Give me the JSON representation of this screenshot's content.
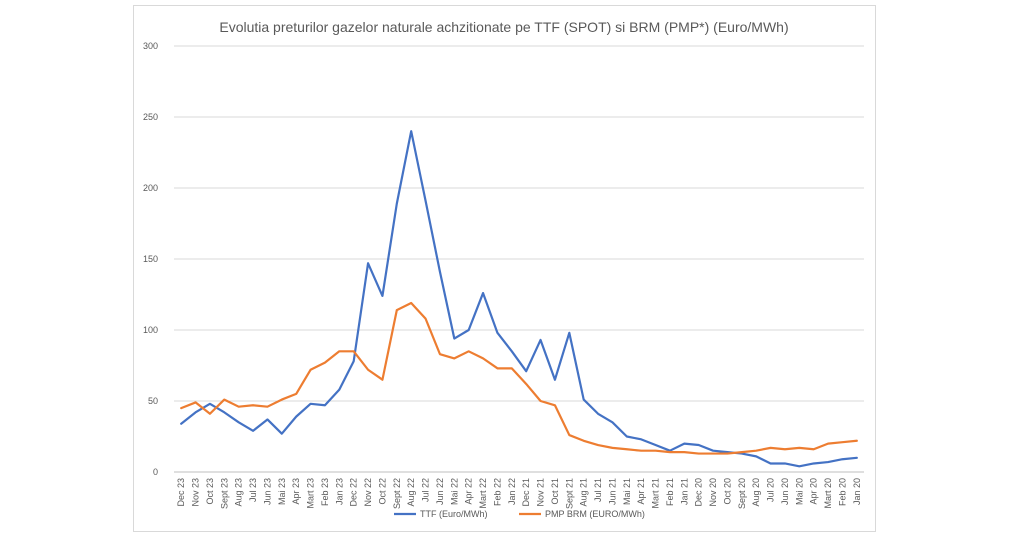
{
  "chart_data": {
    "type": "line",
    "title": "Evolutia preturilor gazelor naturale achzitionate pe TTF (SPOT) si BRM (PMP*) (Euro/MWh)",
    "xlabel": "",
    "ylabel": "",
    "ylim": [
      0,
      300
    ],
    "yticks": [
      "0",
      "50",
      "100",
      "150",
      "200",
      "250",
      "300"
    ],
    "grid": true,
    "legend_position": "bottom",
    "categories": [
      "Dec 23",
      "Nov 23",
      "Oct 23",
      "Sept 23",
      "Aug 23",
      "Jul 23",
      "Jun 23",
      "Mai 23",
      "Apr 23",
      "Mart 23",
      "Feb 23",
      "Jan 23",
      "Dec 22",
      "Nov 22",
      "Oct 22",
      "Sept 22",
      "Aug 22",
      "Jul 22",
      "Jun 22",
      "Mai 22",
      "Apr 22",
      "Mart 22",
      "Feb 22",
      "Jan 22",
      "Dec 21",
      "Nov 21",
      "Oct 21",
      "Sept 21",
      "Aug 21",
      "Jul 21",
      "Jun 21",
      "Mai 21",
      "Apr 21",
      "Mart 21",
      "Feb 21",
      "Jan 21",
      "Dec 20",
      "Nov 20",
      "Oct 20",
      "Sept 20",
      "Aug 20",
      "Jul 20",
      "Jun 20",
      "Mai 20",
      "Apr 20",
      "Mart 20",
      "Feb 20",
      "Jan 20"
    ],
    "series": [
      {
        "name": "TTF (Euro/MWh)",
        "color": "#4472c4",
        "values": [
          34,
          42,
          48,
          42,
          35,
          29,
          37,
          27,
          39,
          48,
          47,
          58,
          78,
          147,
          124,
          189,
          240,
          191,
          141,
          94,
          100,
          126,
          98,
          85,
          71,
          93,
          65,
          98,
          51,
          41,
          35,
          25,
          23,
          19,
          15,
          20,
          19,
          15,
          14,
          13,
          11,
          6,
          6,
          4,
          6,
          7,
          9,
          10
        ]
      },
      {
        "name": "PMP BRM (EURO/MWh)",
        "color": "#ed7d31",
        "values": [
          45,
          49,
          41,
          51,
          46,
          47,
          46,
          51,
          55,
          72,
          77,
          85,
          85,
          72,
          65,
          114,
          119,
          108,
          83,
          80,
          85,
          80,
          73,
          73,
          62,
          50,
          47,
          26,
          22,
          19,
          17,
          16,
          15,
          15,
          14,
          14,
          13,
          13,
          13,
          14,
          15,
          17,
          16,
          17,
          16,
          20,
          21,
          22
        ]
      }
    ]
  }
}
